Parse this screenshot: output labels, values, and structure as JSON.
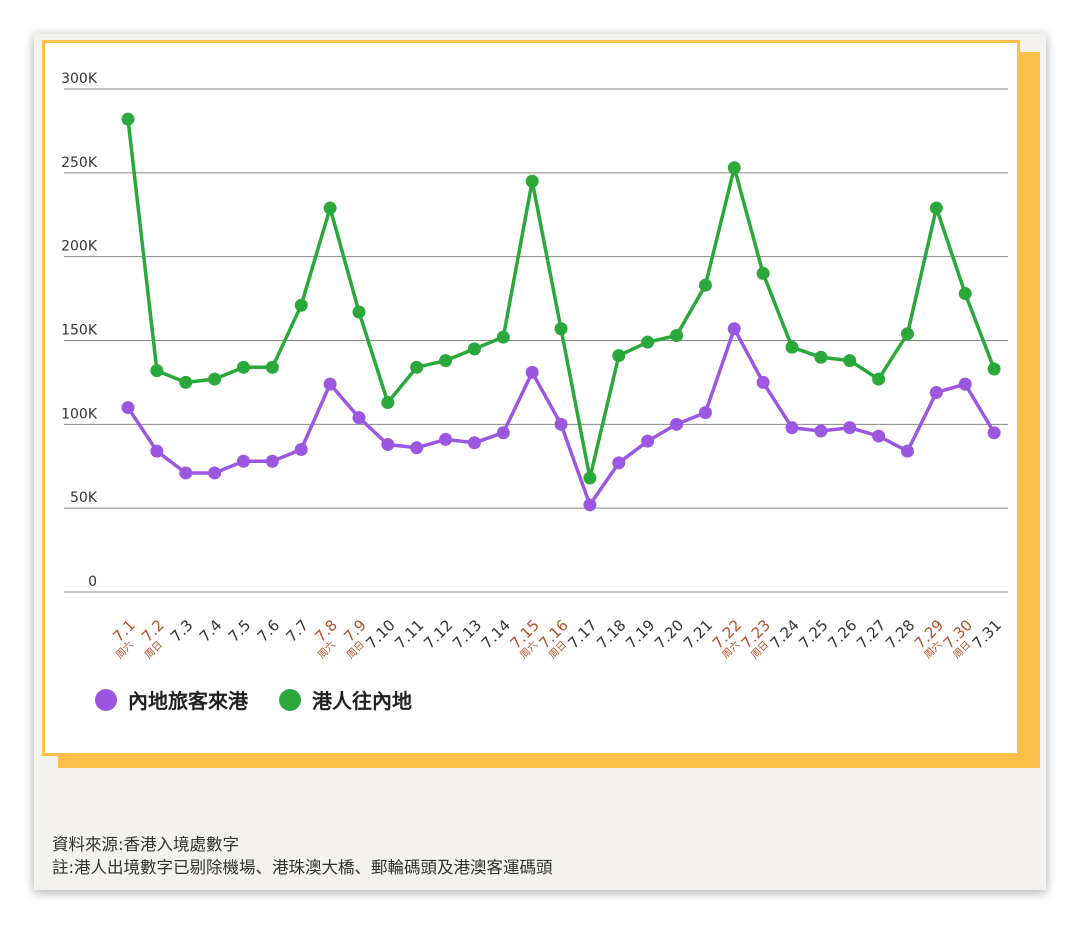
{
  "colors": {
    "series1": "#9b57e0",
    "series2": "#2aa83c",
    "weekend": "#b5502a",
    "weekday": "#333333",
    "grid": "#888888",
    "border": "#fcbf49"
  },
  "chart_data": {
    "type": "line",
    "yticks": [
      "0",
      "50K",
      "100K",
      "150K",
      "200K",
      "250K",
      "300K"
    ],
    "ylim": [
      0,
      300000
    ],
    "x": [
      "7.1",
      "7.2",
      "7.3",
      "7.4",
      "7.5",
      "7.6",
      "7.7",
      "7.8",
      "7.9",
      "7.10",
      "7.11",
      "7.12",
      "7.13",
      "7.14",
      "7.15",
      "7.16",
      "7.17",
      "7.18",
      "7.19",
      "7.20",
      "7.21",
      "7.22",
      "7.23",
      "7.24",
      "7.25",
      "7.26",
      "7.27",
      "7.28",
      "7.29",
      "7.30",
      "7.31"
    ],
    "weekend_labels": [
      "周六",
      "周日",
      "周六",
      "周日",
      "周六",
      "周日",
      "周六",
      "周日",
      "周六",
      "周日"
    ],
    "weekend_index": [
      0,
      1,
      7,
      8,
      14,
      15,
      21,
      22,
      28,
      29
    ],
    "series": [
      {
        "name": "內地旅客來港",
        "values": [
          110000,
          84000,
          71000,
          71000,
          78000,
          78000,
          85000,
          124000,
          104000,
          88000,
          86000,
          91000,
          89000,
          95000,
          131000,
          100000,
          52000,
          77000,
          90000,
          100000,
          107000,
          157000,
          125000,
          98000,
          96000,
          98000,
          93000,
          84000,
          119000,
          124000,
          95000
        ]
      },
      {
        "name": "港人往內地",
        "values": [
          282000,
          132000,
          125000,
          127000,
          134000,
          134000,
          171000,
          229000,
          167000,
          113000,
          134000,
          138000,
          145000,
          152000,
          245000,
          157000,
          68000,
          141000,
          149000,
          153000,
          183000,
          253000,
          190000,
          146000,
          140000,
          138000,
          127000,
          154000,
          229000,
          178000,
          133000
        ]
      }
    ]
  },
  "footer": {
    "source": "資料來源:香港入境處數字",
    "note": "註:港人出境數字已剔除機場、港珠澳大橋、郵輪碼頭及港澳客運碼頭"
  }
}
